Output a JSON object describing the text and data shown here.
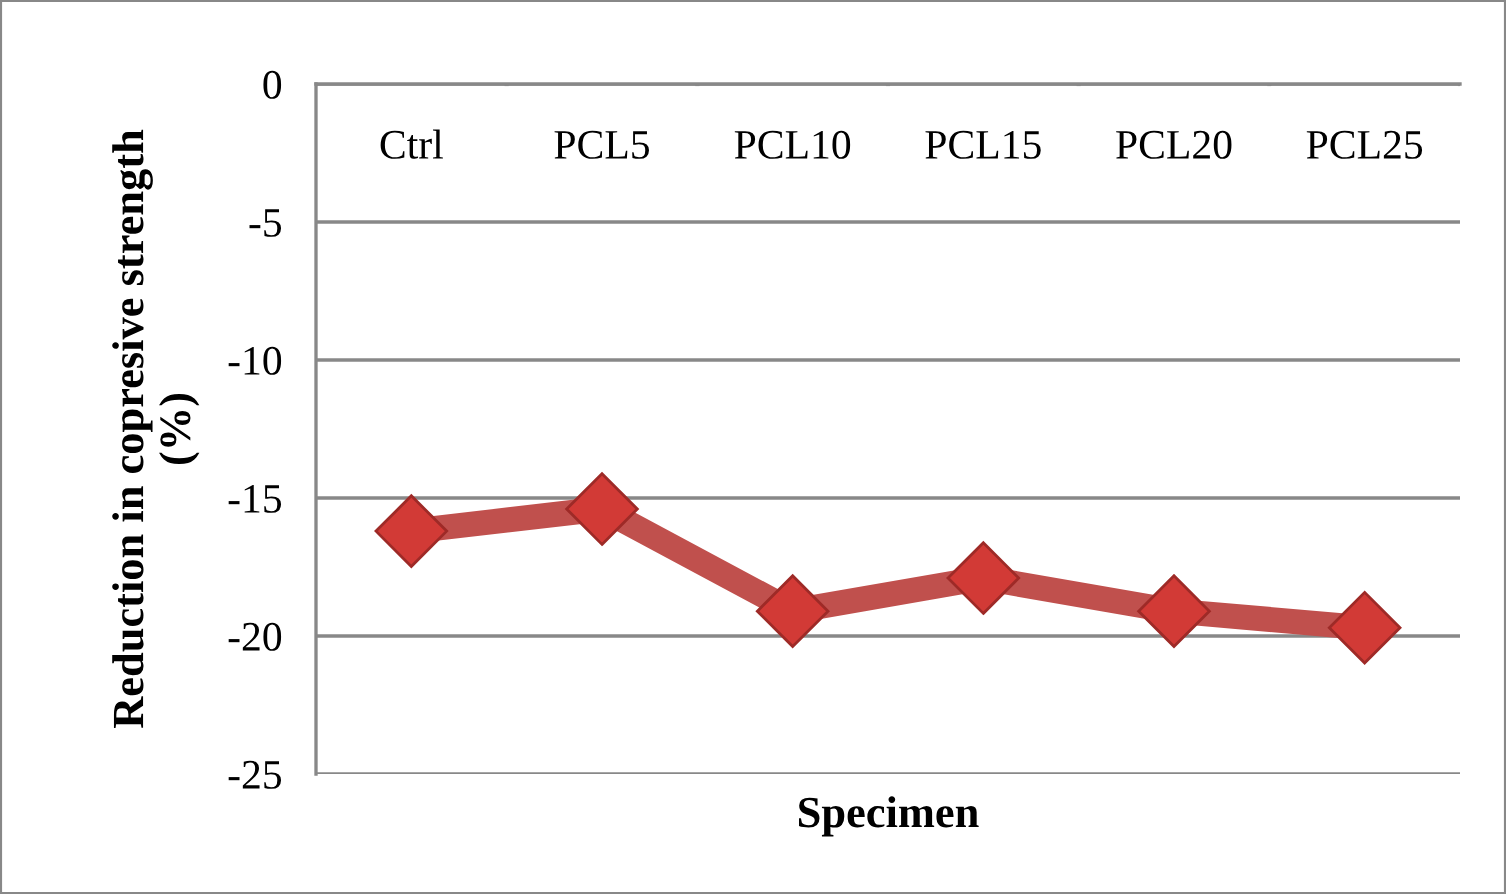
{
  "chart_data": {
    "type": "line",
    "xlabel": "Specimen",
    "ylabel": "Reduction in copresive strength\n(%)",
    "categories": [
      "Ctrl",
      "PCL5",
      "PCL10",
      "PCL15",
      "PCL20",
      "PCL25"
    ],
    "series": [
      {
        "color": "#c0504d",
        "values": [
          -16.2,
          -15.4,
          -19.1,
          -17.9,
          -19.1,
          -19.7
        ]
      }
    ],
    "ylim": [
      -25,
      0
    ],
    "yticks": [
      -25,
      -20,
      -15,
      -10,
      -5,
      0
    ],
    "grid": "y",
    "marker": "diamond",
    "line_style": "solid",
    "legend": false
  }
}
